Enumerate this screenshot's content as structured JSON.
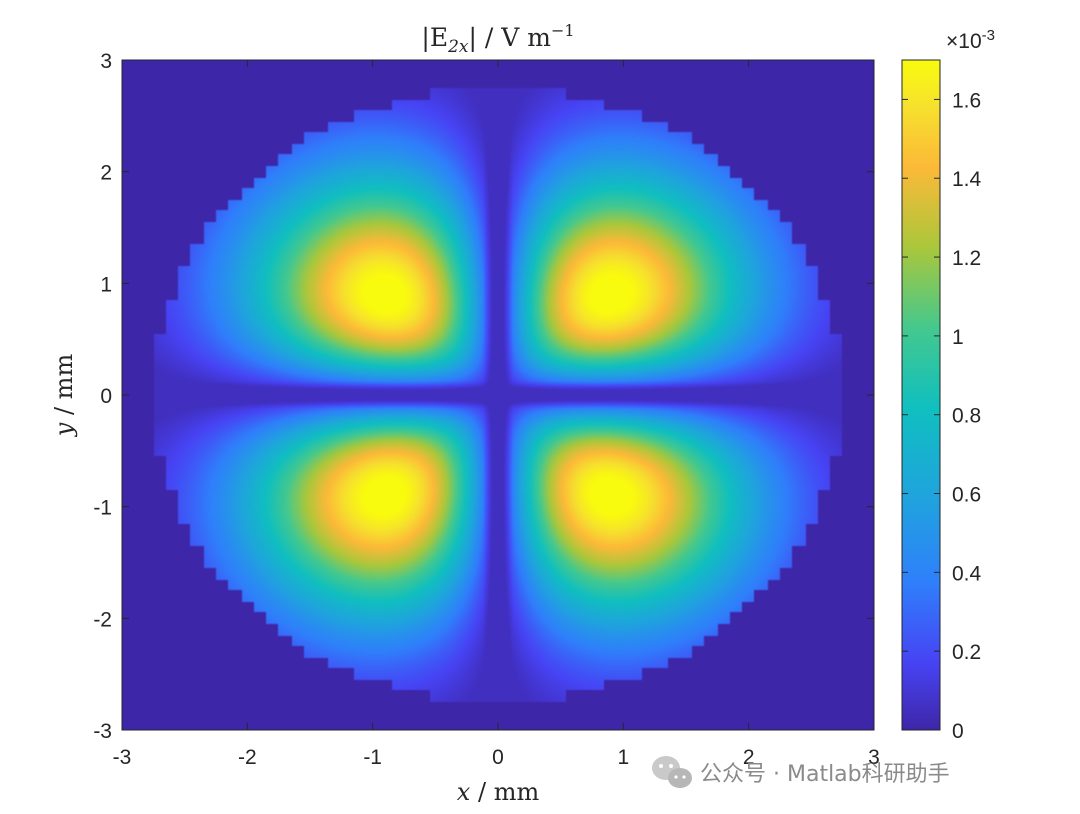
{
  "chart_data": {
    "type": "heatmap",
    "title": {
      "base": "|E",
      "sub": "2x",
      "tail": "| / V m",
      "sup": "−1"
    },
    "xlabel": {
      "var": "x",
      "rest": " / mm"
    },
    "ylabel": {
      "var": "y",
      "rest": " / mm"
    },
    "xlim": [
      -3,
      3
    ],
    "ylim": [
      -3,
      3
    ],
    "xticks": [
      "-3",
      "-2",
      "-1",
      "0",
      "1",
      "2",
      "3"
    ],
    "yticks": [
      "-3",
      "-2",
      "-1",
      "0",
      "1",
      "2",
      "3"
    ],
    "colorbar": {
      "range": [
        0,
        0.0017
      ],
      "exponent_base": "×10",
      "exponent_sup": "-3",
      "ticks": [
        {
          "value": 0,
          "label": "0"
        },
        {
          "value": 0.2,
          "label": "0.2"
        },
        {
          "value": 0.4,
          "label": "0.4"
        },
        {
          "value": 0.6,
          "label": "0.6"
        },
        {
          "value": 0.8,
          "label": "0.8"
        },
        {
          "value": 1.0,
          "label": "1"
        },
        {
          "value": 1.2,
          "label": "1.2"
        },
        {
          "value": 1.4,
          "label": "1.4"
        },
        {
          "value": 1.6,
          "label": "1.6"
        }
      ],
      "colormap": "parula"
    },
    "field": {
      "domain": "disk",
      "radius_mm": 2.75,
      "peak_positions_mm": [
        [
          -1,
          1
        ],
        [
          1,
          1
        ],
        [
          -1,
          -1
        ],
        [
          1,
          -1
        ]
      ],
      "peak_value": 0.0017,
      "background_value": 0
    },
    "grid": false
  },
  "watermark": {
    "text": "公众号 · Matlab科研助手"
  }
}
